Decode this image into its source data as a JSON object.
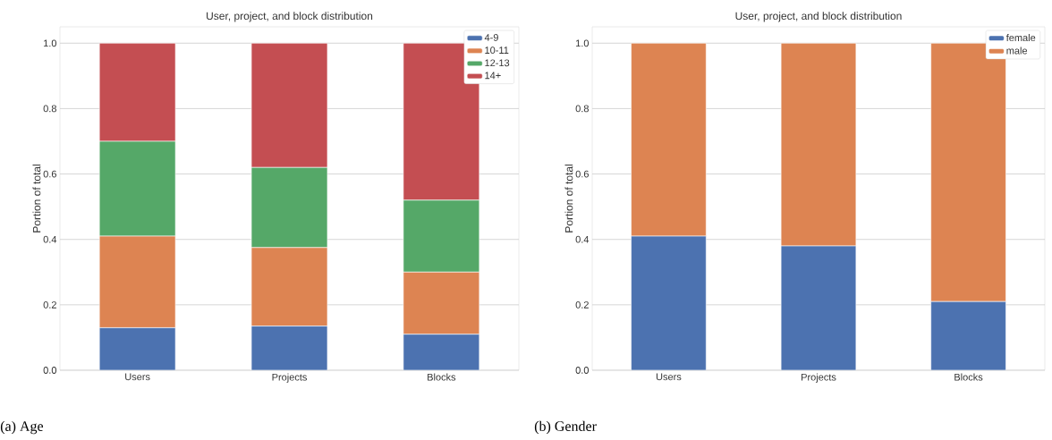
{
  "chart_data": [
    {
      "type": "bar",
      "stacked": true,
      "title": "User, project, and block distribution",
      "ylabel": "Portion of total",
      "categories": [
        "Users",
        "Projects",
        "Blocks"
      ],
      "series": [
        {
          "name": "4-9",
          "color": "#4c72b0",
          "values": [
            0.13,
            0.135,
            0.11
          ]
        },
        {
          "name": "10-11",
          "color": "#dd8452",
          "values": [
            0.28,
            0.24,
            0.19
          ]
        },
        {
          "name": "12-13",
          "color": "#55a868",
          "values": [
            0.29,
            0.245,
            0.22
          ]
        },
        {
          "name": "14+",
          "color": "#c44e52",
          "values": [
            0.3,
            0.38,
            0.48
          ]
        }
      ],
      "ylim": [
        0,
        1.05
      ],
      "yticks": [
        {
          "value": 0,
          "label": "0.0"
        },
        {
          "value": 0.2,
          "label": "0.2"
        },
        {
          "value": 0.4,
          "label": "0.4"
        },
        {
          "value": 0.6,
          "label": "0.6"
        },
        {
          "value": 0.8,
          "label": "0.8"
        },
        {
          "value": 1,
          "label": "1.0"
        }
      ],
      "grid": "y",
      "legend": "top right",
      "annotations": [
        "(a) Age"
      ]
    },
    {
      "type": "bar",
      "stacked": true,
      "title": "User, project, and block distribution",
      "ylabel": "Portion of total",
      "categories": [
        "Users",
        "Projects",
        "Blocks"
      ],
      "series": [
        {
          "name": "female",
          "color": "#4c72b0",
          "values": [
            0.41,
            0.38,
            0.21
          ]
        },
        {
          "name": "male",
          "color": "#dd8452",
          "values": [
            0.59,
            0.62,
            0.79
          ]
        }
      ],
      "ylim": [
        0,
        1.05
      ],
      "yticks": [
        {
          "value": 0,
          "label": "0.0"
        },
        {
          "value": 0.2,
          "label": "0.2"
        },
        {
          "value": 0.4,
          "label": "0.4"
        },
        {
          "value": 0.6,
          "label": "0.6"
        },
        {
          "value": 0.8,
          "label": "0.8"
        },
        {
          "value": 1,
          "label": "1.0"
        }
      ],
      "grid": "y",
      "legend": "top right",
      "annotations": [
        "(b) Gender"
      ]
    }
  ]
}
